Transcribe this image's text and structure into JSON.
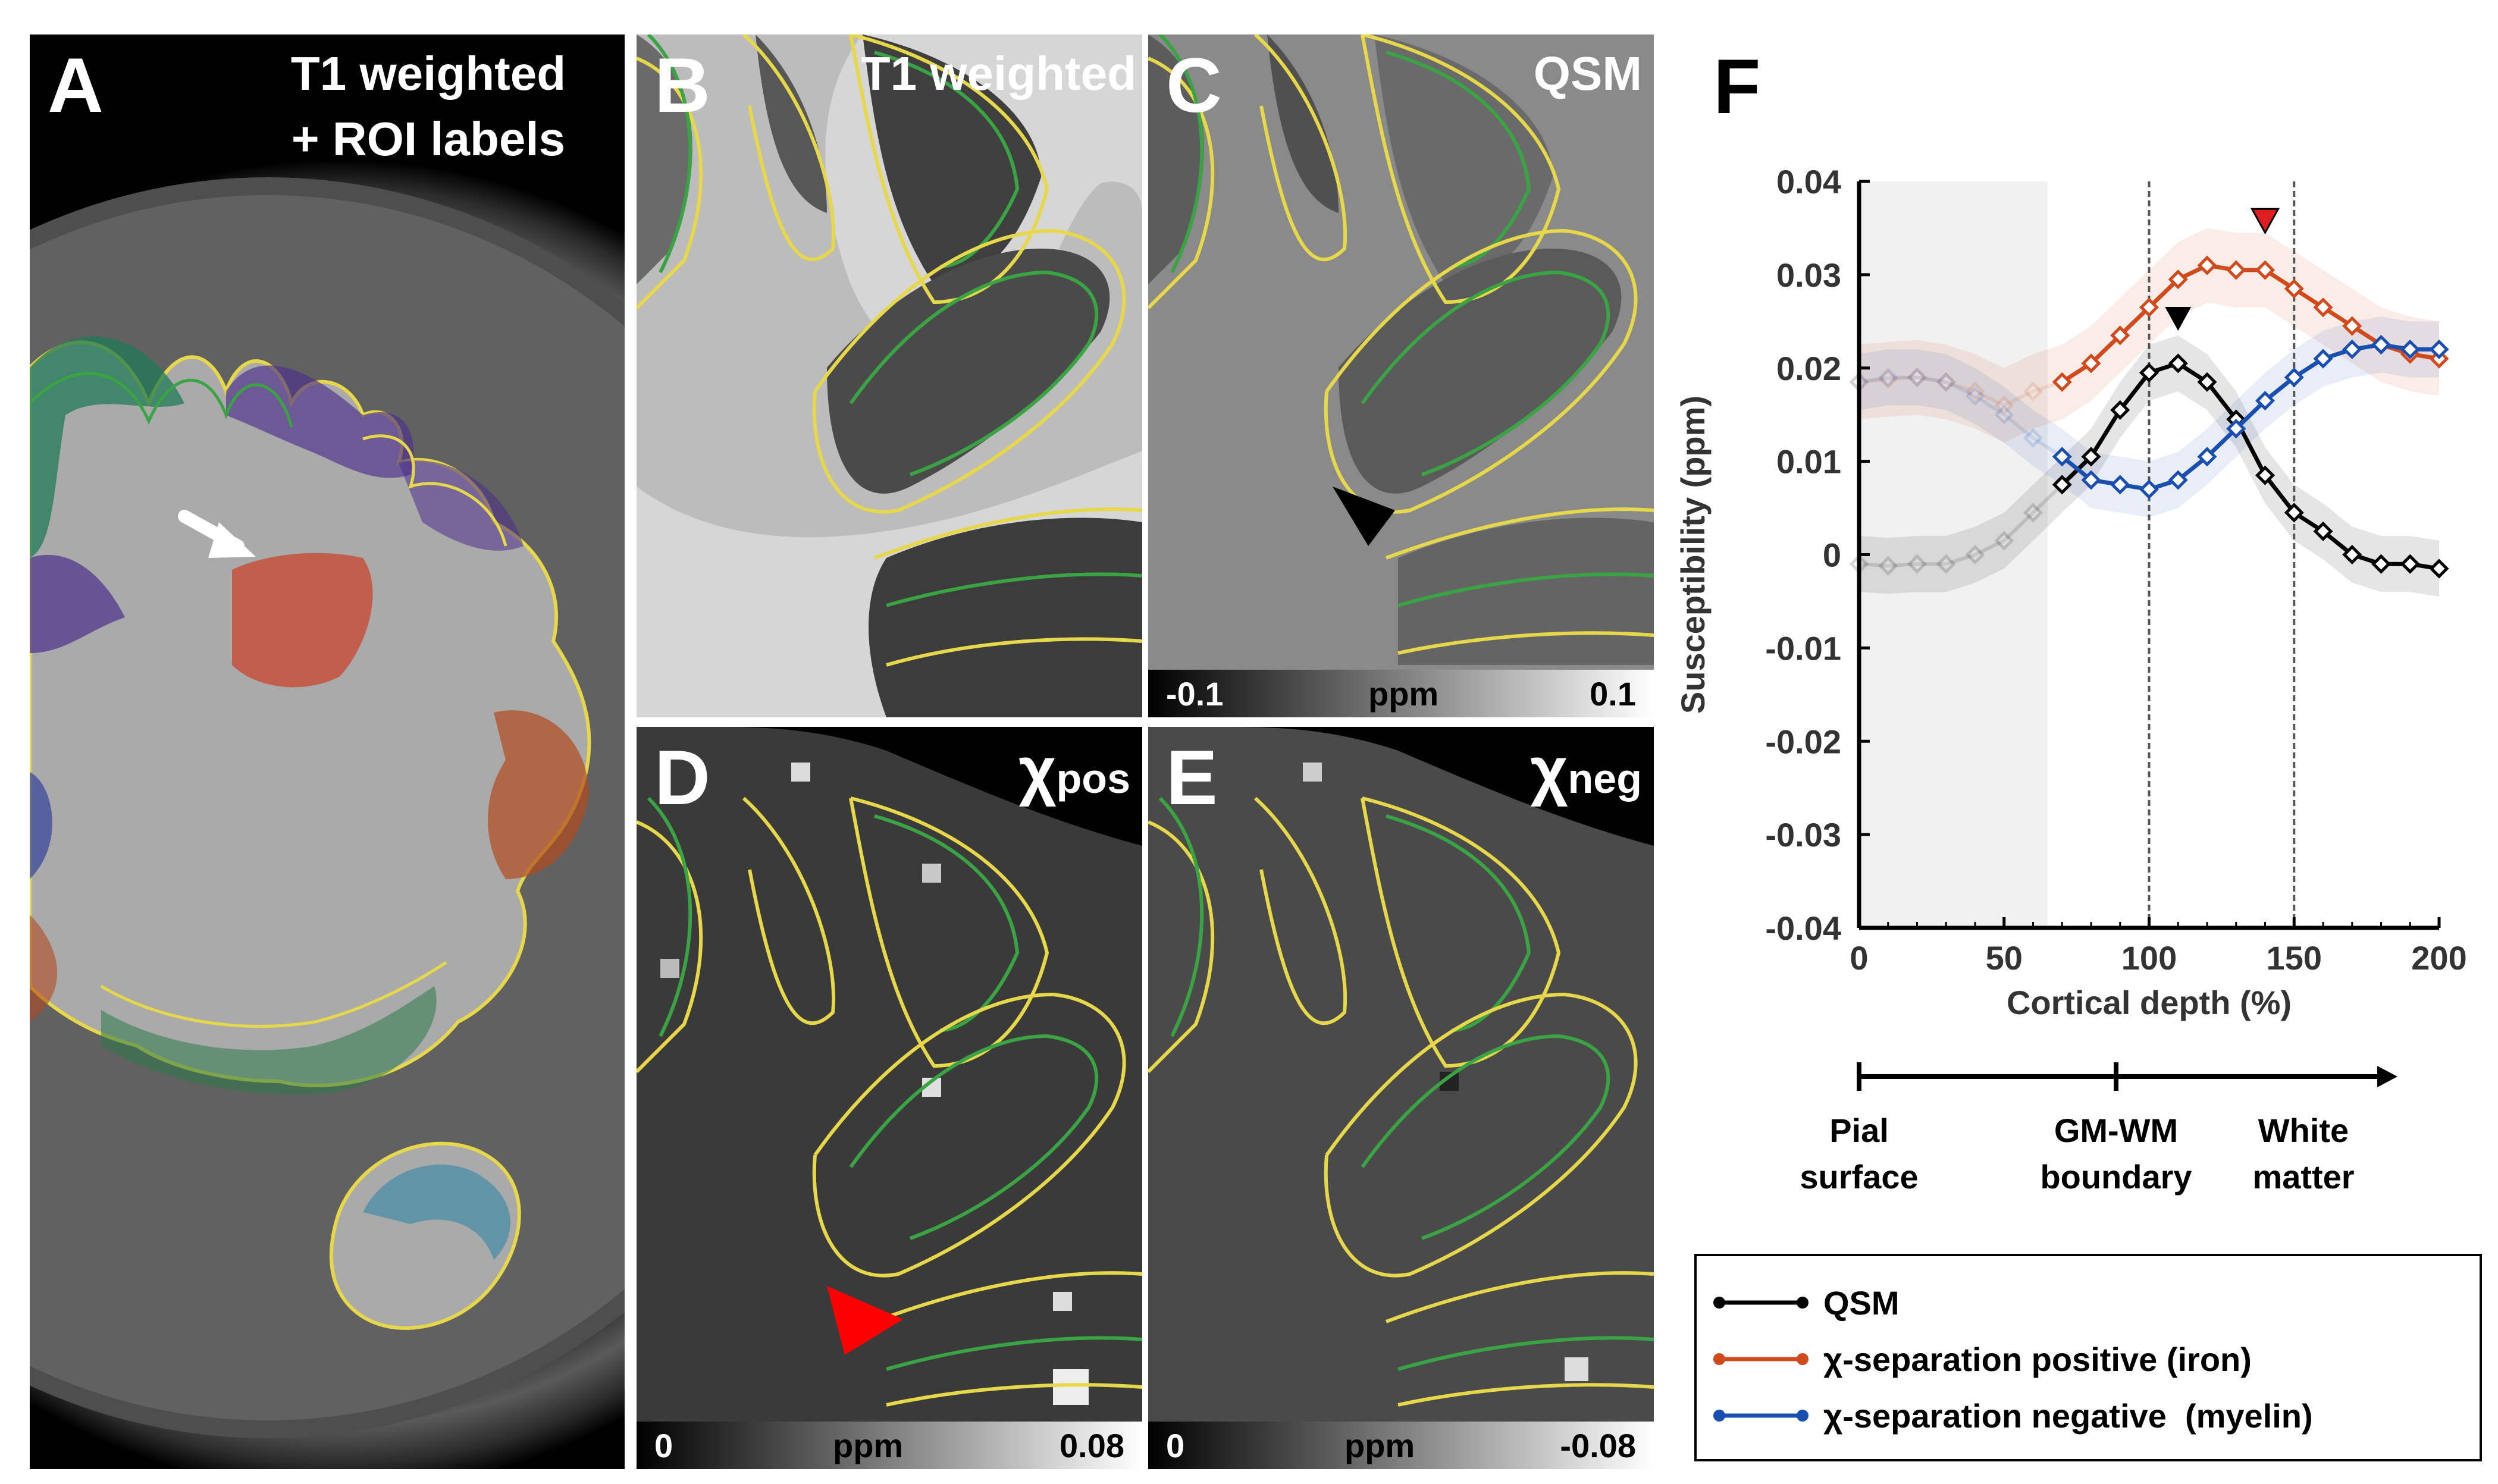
{
  "panels": {
    "a": {
      "letter": "A",
      "title_line1": "T1 weighted",
      "title_line2": "+ ROI labels"
    },
    "b": {
      "letter": "B",
      "title": "T1 weighted"
    },
    "c": {
      "letter": "C",
      "title": "QSM",
      "cbar_min": "-0.1",
      "cbar_unit": "ppm",
      "cbar_max": "0.1"
    },
    "d": {
      "letter": "D",
      "chi": "χ",
      "sub": "pos",
      "cbar_min": "0",
      "cbar_unit": "ppm",
      "cbar_max": "0.08"
    },
    "e": {
      "letter": "E",
      "chi": "χ",
      "sub": "neg",
      "cbar_min": "0",
      "cbar_unit": "ppm",
      "cbar_max": "-0.08"
    }
  },
  "figure_f": {
    "letter": "F",
    "depth_axis": {
      "pial": [
        "Pial",
        "surface"
      ],
      "boundary": [
        "GM-WM",
        "boundary"
      ],
      "white": [
        "White",
        "matter"
      ]
    },
    "legend": [
      "QSM",
      "χ-separation positive (iron)",
      "χ-separation negative  (myelin)"
    ]
  },
  "chart_data": {
    "type": "line",
    "xlabel": "Cortical depth (%)",
    "ylabel": "Susceptibility (ppm)",
    "xlim": [
      0,
      200
    ],
    "ylim": [
      -0.04,
      0.04
    ],
    "xticks": [
      "0",
      "50",
      "100",
      "150",
      "200"
    ],
    "yticks": [
      "0.04",
      "0.03",
      "0.02",
      "0.01",
      "0",
      "-0.01",
      "-0.02",
      "-0.03",
      "-0.04"
    ],
    "grid": false,
    "vlines": [
      100,
      150
    ],
    "faded_region": [
      0,
      65
    ],
    "x": [
      0,
      10,
      20,
      30,
      40,
      50,
      60,
      70,
      80,
      90,
      100,
      110,
      120,
      130,
      140,
      150,
      160,
      170,
      180,
      190,
      200
    ],
    "series": [
      {
        "name": "QSM",
        "color": "#000000",
        "values": [
          -0.001,
          -0.0012,
          -0.001,
          -0.001,
          0.0,
          0.0015,
          0.0045,
          0.0075,
          0.0105,
          0.0155,
          0.0195,
          0.0205,
          0.0185,
          0.0145,
          0.0085,
          0.0045,
          0.0025,
          0.0,
          -0.001,
          -0.001,
          -0.0015
        ]
      },
      {
        "name": "χ-separation positive (iron)",
        "color": "#d04a1e",
        "values": [
          0.0185,
          0.0188,
          0.019,
          0.0185,
          0.0175,
          0.016,
          0.0175,
          0.0185,
          0.0205,
          0.0235,
          0.0265,
          0.0295,
          0.031,
          0.0305,
          0.0305,
          0.0285,
          0.0265,
          0.0245,
          0.0225,
          0.0215,
          0.021
        ]
      },
      {
        "name": "χ-separation negative  (myelin)",
        "color": "#1a4fb0",
        "values": [
          0.0185,
          0.019,
          0.019,
          0.0185,
          0.017,
          0.015,
          0.0125,
          0.0105,
          0.008,
          0.0075,
          0.007,
          0.008,
          0.0105,
          0.0135,
          0.0165,
          0.019,
          0.021,
          0.022,
          0.0225,
          0.022,
          0.022
        ]
      }
    ]
  }
}
